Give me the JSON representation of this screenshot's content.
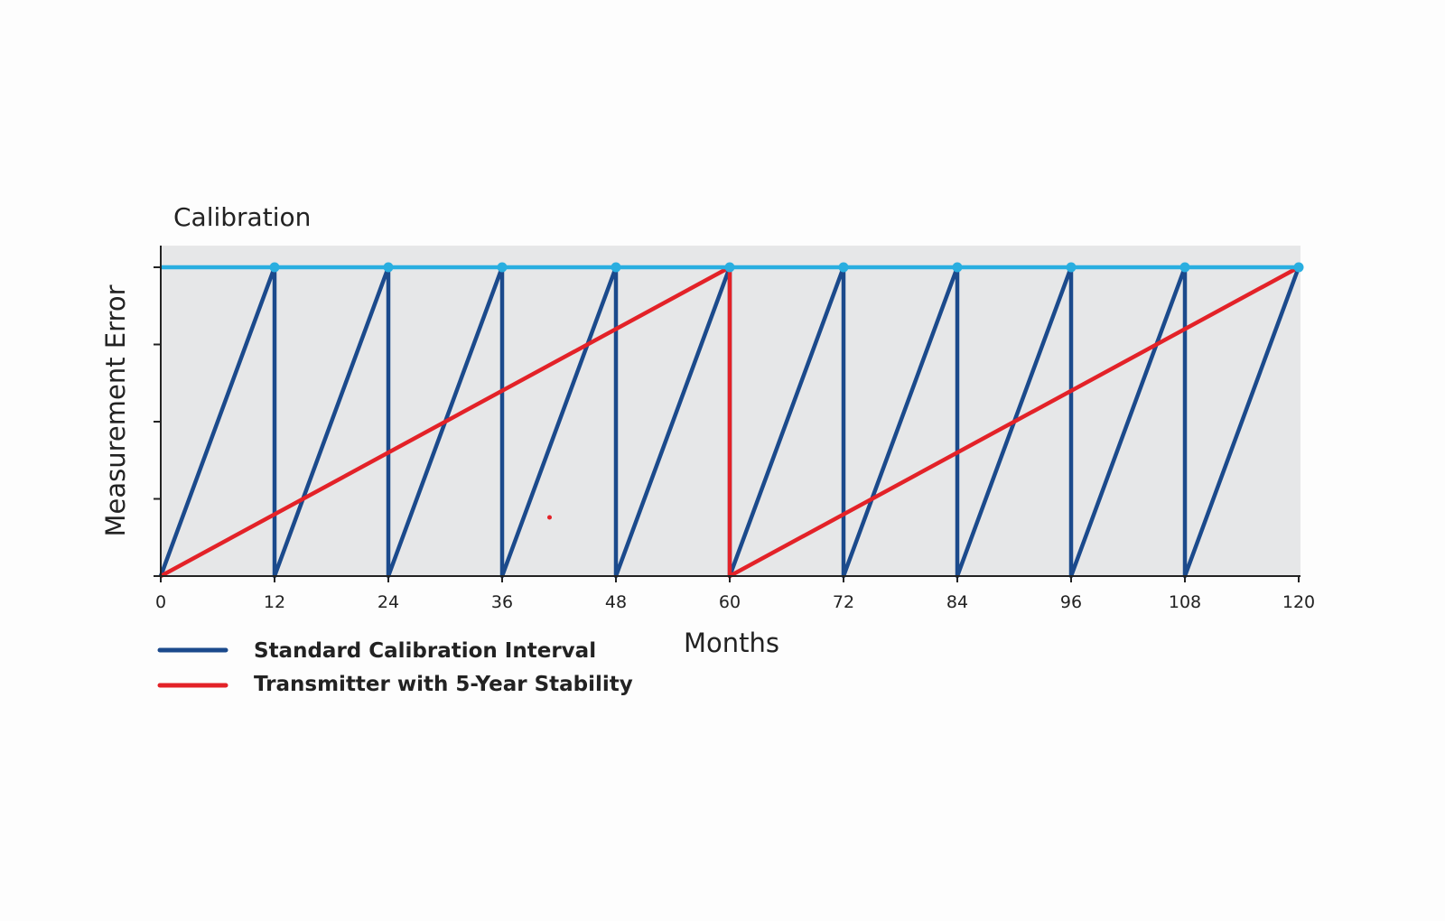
{
  "chart_data": {
    "type": "line",
    "title": "Calibration",
    "xlabel": "Months",
    "ylabel": "Measurement Error",
    "xlim": [
      0,
      120
    ],
    "ylim": [
      0,
      1.07
    ],
    "x_ticks": [
      0,
      12,
      24,
      36,
      48,
      60,
      72,
      84,
      96,
      108,
      120
    ],
    "y_ticks": [
      0,
      0.25,
      0.5,
      0.75,
      1
    ],
    "y_tick_labels_shown": false,
    "grid": false,
    "plot_background": "#e6e7e8",
    "legend_position": "bottom-left",
    "calibration_limit": {
      "y": 1,
      "color": "#29aee0",
      "marker_x": [
        12,
        24,
        36,
        48,
        60,
        72,
        84,
        96,
        108,
        120
      ]
    },
    "series": [
      {
        "name": "Standard Calibration Interval",
        "color": "#1b4a8c",
        "x": [
          0,
          12,
          12,
          24,
          24,
          36,
          36,
          48,
          48,
          60,
          60,
          72,
          72,
          84,
          84,
          96,
          96,
          108,
          108,
          120
        ],
        "y": [
          0,
          1,
          0,
          1,
          0,
          1,
          0,
          1,
          0,
          1,
          0,
          1,
          0,
          1,
          0,
          1,
          0,
          1,
          0,
          1
        ]
      },
      {
        "name": "Transmitter with 5-Year Stability",
        "color": "#e32228",
        "x": [
          0,
          60,
          60,
          120
        ],
        "y": [
          0,
          1,
          0,
          1
        ]
      }
    ],
    "stray_points": [
      {
        "x": 41,
        "y": 0.19,
        "color": "#e32228"
      }
    ]
  }
}
